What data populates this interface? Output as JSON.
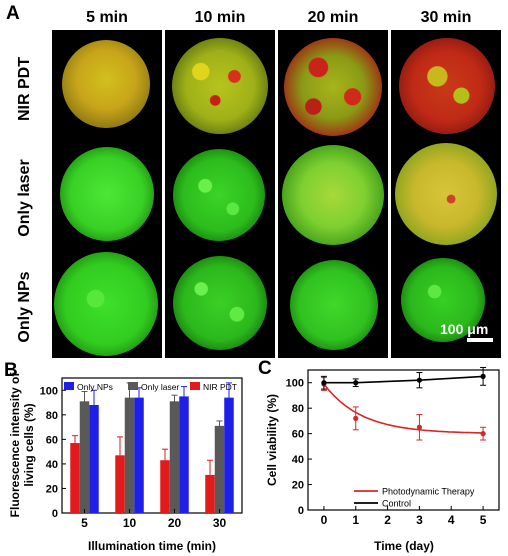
{
  "panel_labels": {
    "a": "A",
    "b": "B",
    "c": "C"
  },
  "columns": [
    "5 min",
    "10 min",
    "20 min",
    "30 min"
  ],
  "rows": [
    "NIR PDT",
    "Only laser",
    "Only NPs"
  ],
  "scale_bar": "100 μm",
  "chart_data": [
    {
      "type": "bar",
      "xlabel": "Illumination time (min)",
      "ylabel": "Fluorescence intensity of living cells (%)",
      "ylabel_lines": [
        "Fluorescence intensity of",
        "living cells (%)"
      ],
      "ylim": [
        0,
        110
      ],
      "yticks": [
        0,
        20,
        40,
        60,
        80,
        100
      ],
      "categories": [
        "5",
        "10",
        "20",
        "30"
      ],
      "legend_position": "top",
      "series": [
        {
          "name": "NIR PDT",
          "color": "#e31a1c",
          "values": [
            57,
            47,
            43,
            31
          ],
          "errors": [
            6,
            15,
            9,
            12
          ]
        },
        {
          "name": "Only laser",
          "color": "#595959",
          "values": [
            91,
            94,
            91,
            71
          ],
          "errors": [
            8,
            12,
            5,
            4
          ]
        },
        {
          "name": "Only NPs",
          "color": "#1f1fe8",
          "values": [
            88,
            94,
            95,
            94
          ],
          "errors": [
            12,
            8,
            8,
            12
          ]
        }
      ]
    },
    {
      "type": "line",
      "xlabel": "Time (day)",
      "ylabel": "Cell viability (%)",
      "xlim": [
        -0.5,
        5.5
      ],
      "ylim": [
        0,
        110
      ],
      "xticks": [
        0,
        1,
        2,
        3,
        4,
        5
      ],
      "yticks": [
        0,
        20,
        40,
        60,
        80,
        100
      ],
      "legend_position": "bottom-left",
      "series": [
        {
          "name": "Photodynamic Therapy",
          "color": "#d62728",
          "x": [
            0,
            1,
            3,
            5
          ],
          "y": [
            99,
            72,
            65,
            60
          ],
          "errors": [
            5,
            9,
            10,
            5
          ]
        },
        {
          "name": "Control",
          "color": "#000000",
          "x": [
            0,
            1,
            3,
            5
          ],
          "y": [
            100,
            100,
            102,
            105
          ],
          "errors": [
            5,
            3,
            6,
            7
          ]
        }
      ]
    }
  ],
  "colors": {
    "live": "#2ee01a",
    "dead": "#e01a1a",
    "merged": "#d9b21a"
  }
}
